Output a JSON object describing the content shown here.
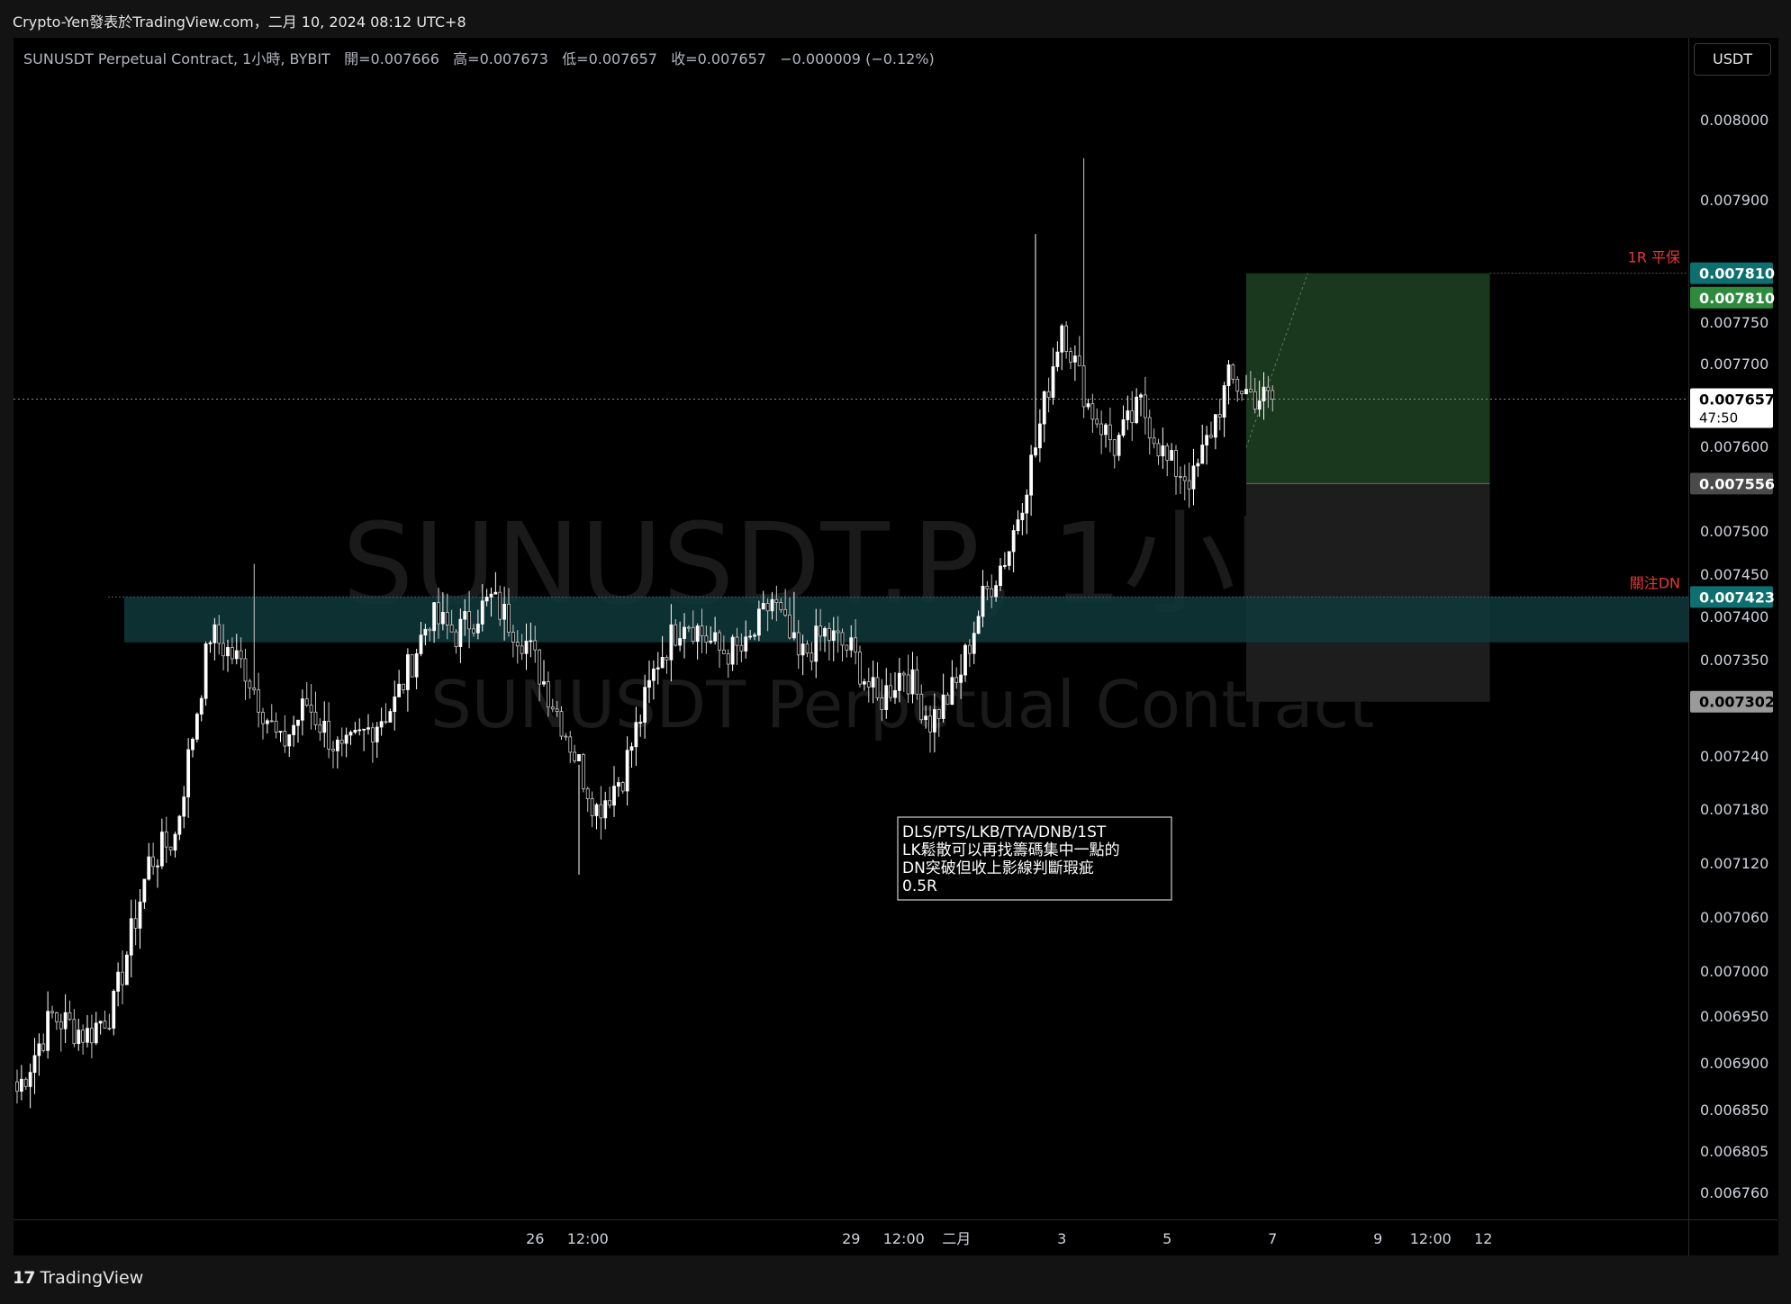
{
  "header": {
    "title": "Crypto-Yen發表於TradingView.com，二月 10, 2024 08:12 UTC+8"
  },
  "legend": {
    "symbol": "SUNUSDT Perpetual Contract, 1小時, BYBIT",
    "open_label": "開=",
    "open": "0.007666",
    "high_label": "高=",
    "high": "0.007673",
    "low_label": "低=",
    "low": "0.007657",
    "close_label": "收=",
    "close": "0.007657",
    "change": "−0.000009 (−0.12%)"
  },
  "currency": "USDT",
  "watermark": {
    "line1": "SUNUSDT.P, 1小時",
    "line2": "SUNUSDT Perpetual Contract"
  },
  "annotation": {
    "lines": [
      "DLS/PTS/LKB/TYA/DNB/1ST",
      "LK鬆散可以再找籌碼集中一點的",
      "DN突破但收上影線判斷瑕疵",
      "0.5R"
    ]
  },
  "labels": {
    "breakeven": "1R 平保",
    "watch": "關注DN"
  },
  "footer": {
    "brand": "TradingView",
    "brand_mark": "17"
  },
  "chart_data": {
    "type": "candlestick",
    "y_ticks": [
      0.008,
      0.0079,
      0.00775,
      0.0077,
      0.0076,
      0.0075,
      0.00745,
      0.0074,
      0.00735,
      0.00724,
      0.00718,
      0.00712,
      0.00706,
      0.007,
      0.00695,
      0.0069,
      0.00685,
      0.006805,
      0.00676
    ],
    "y_tick_labels": [
      "0.008000",
      "0.007900",
      "0.007750",
      "0.007700",
      "0.007600",
      "0.007500",
      "0.007450",
      "0.007400",
      "0.007350",
      "0.007240",
      "0.007180",
      "0.007120",
      "0.007060",
      "0.007000",
      "0.006950",
      "0.006900",
      "0.006850",
      "0.006805",
      "0.006760"
    ],
    "x_ticks": [
      {
        "label": "26",
        "bar": 118
      },
      {
        "label": "12:00",
        "bar": 130
      },
      {
        "label": "29",
        "bar": 190
      },
      {
        "label": "12:00",
        "bar": 202
      },
      {
        "label": "二月",
        "bar": 214
      },
      {
        "label": "3",
        "bar": 238
      },
      {
        "label": "5",
        "bar": 262
      },
      {
        "label": "7",
        "bar": 286
      },
      {
        "label": "9",
        "bar": 310
      },
      {
        "label": "12:00",
        "bar": 322
      },
      {
        "label": "12",
        "bar": 334
      }
    ],
    "price_tags": [
      {
        "value": "0.007810",
        "price": 0.00781,
        "color": "#0d6f6f",
        "text_color": "#ffffff"
      },
      {
        "value": "0.007810",
        "price": 0.00778,
        "color": "#2e8b3e",
        "text_color": "#ffffff"
      },
      {
        "value": "0.007657",
        "price": 0.007657,
        "color": "#ffffff",
        "text_color": "#000000",
        "sub": "47:50"
      },
      {
        "value": "0.007556",
        "price": 0.007556,
        "color": "#4a4a4a",
        "text_color": "#ffffff"
      },
      {
        "value": "0.007423",
        "price": 0.007423,
        "color": "#0d6f6f",
        "text_color": "#ffffff"
      },
      {
        "value": "0.007302",
        "price": 0.007302,
        "color": "#9a9a9a",
        "text_color": "#000000"
      }
    ],
    "position": {
      "entry": 0.007556,
      "target": 0.00781,
      "stop": 0.007302
    },
    "zone": {
      "top": 0.007423,
      "bottom": 0.00737
    },
    "current_price": 0.007657,
    "series_anchors": [
      [
        0,
        0.00687
      ],
      [
        8,
        0.00695
      ],
      [
        16,
        0.00693
      ],
      [
        22,
        0.00696
      ],
      [
        30,
        0.00712
      ],
      [
        36,
        0.00715
      ],
      [
        44,
        0.00738
      ],
      [
        52,
        0.00734
      ],
      [
        60,
        0.00725
      ],
      [
        66,
        0.0073
      ],
      [
        74,
        0.00724
      ],
      [
        80,
        0.00727
      ],
      [
        86,
        0.0073
      ],
      [
        94,
        0.0074
      ],
      [
        100,
        0.00738
      ],
      [
        108,
        0.00742
      ],
      [
        116,
        0.00737
      ],
      [
        124,
        0.00728
      ],
      [
        132,
        0.00718
      ],
      [
        138,
        0.00722
      ],
      [
        146,
        0.00735
      ],
      [
        152,
        0.0074
      ],
      [
        160,
        0.00736
      ],
      [
        166,
        0.00736
      ],
      [
        172,
        0.00742
      ],
      [
        178,
        0.00735
      ],
      [
        184,
        0.00738
      ],
      [
        190,
        0.00736
      ],
      [
        196,
        0.0073
      ],
      [
        202,
        0.00734
      ],
      [
        208,
        0.00728
      ],
      [
        214,
        0.00732
      ],
      [
        220,
        0.00742
      ],
      [
        226,
        0.00748
      ],
      [
        232,
        0.0076
      ],
      [
        238,
        0.00775
      ],
      [
        244,
        0.00765
      ],
      [
        250,
        0.0076
      ],
      [
        256,
        0.00765
      ],
      [
        262,
        0.00758
      ],
      [
        268,
        0.00756
      ],
      [
        276,
        0.00768
      ],
      [
        282,
        0.00766
      ],
      [
        286,
        0.007657
      ]
    ],
    "spike_highs": [
      [
        54,
        0.007462
      ],
      [
        128,
        0.007107
      ],
      [
        177,
        0.007429
      ],
      [
        232,
        0.007858
      ],
      [
        243,
        0.007952
      ]
    ]
  }
}
